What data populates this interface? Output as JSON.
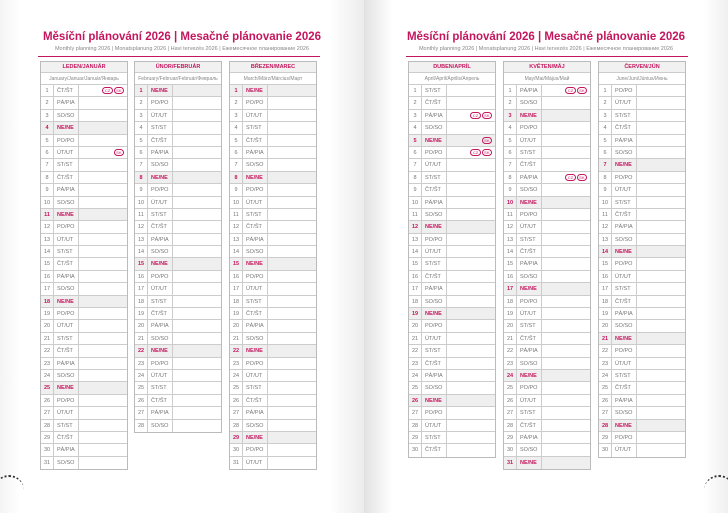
{
  "pages": [
    {
      "title": "Měsíční plánování 2026 | Mesačné plánovanie 2026",
      "subtitle": "Monthly planning 2026 | Monatsplanung 2026 | Havi tervezés 2026 | Ежемесячное планирование 2026",
      "months": [
        {
          "name": "LEDEN/JANUÁR",
          "subtitle": "January/Januar/Január/Январь",
          "first_weekday": "ČT/ŠT",
          "day_count": 31,
          "holidays": {
            "1": [
              "CZ",
              "SK"
            ],
            "6": [
              "SK"
            ]
          }
        },
        {
          "name": "ÚNOR/FEBRUÁR",
          "subtitle": "February/Februar/Február/Февраль",
          "first_weekday": "NE/NE",
          "day_count": 28,
          "holidays": {}
        },
        {
          "name": "BŘEZEN/MAREC",
          "subtitle": "March/März/Március/Март",
          "first_weekday": "NE/NE",
          "day_count": 31,
          "holidays": {}
        }
      ]
    },
    {
      "title": "Měsíční plánování 2026 | Mesačné plánovanie 2026",
      "subtitle": "Monthly planning 2026 | Monatsplanung 2026 | Havi tervezés 2026 | Ежемесячное планирование 2026",
      "months": [
        {
          "name": "DUBEN/APRÍL",
          "subtitle": "April/April/Április/Апрель",
          "first_weekday": "ST/ST",
          "day_count": 30,
          "holidays": {
            "3": [
              "CZ",
              "SK"
            ],
            "5": [
              "SK"
            ],
            "6": [
              "CZ",
              "SK"
            ]
          }
        },
        {
          "name": "KVĚTEN/MÁJ",
          "subtitle": "May/Mai/Május/Май",
          "first_weekday": "PÁ/PIA",
          "day_count": 31,
          "holidays": {
            "1": [
              "CZ",
              "SK"
            ],
            "8": [
              "CZ",
              "SK"
            ]
          }
        },
        {
          "name": "ČERVEN/JÚN",
          "subtitle": "June/Juni/Június/Июнь",
          "first_weekday": "PO/PO",
          "day_count": 30,
          "holidays": {}
        }
      ]
    }
  ],
  "weekday_labels": [
    "PO/PO",
    "ÚT/UT",
    "ST/ST",
    "ČT/ŠT",
    "PÁ/PIA",
    "SO/SO",
    "NE/NE"
  ],
  "colors": {
    "accent": "#c4165e",
    "sunday_bg": "#efefef"
  }
}
